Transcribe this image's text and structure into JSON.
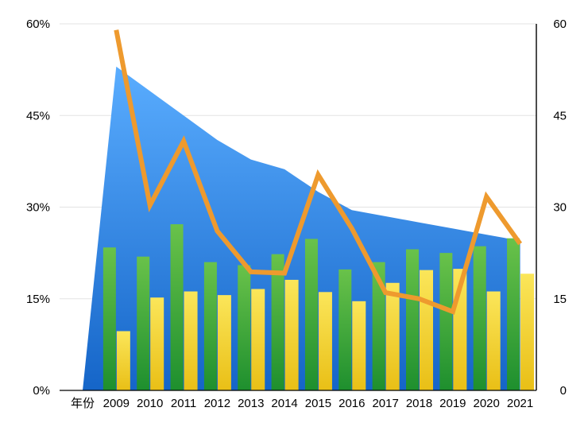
{
  "chart_data": {
    "type": "bar",
    "categories": [
      "年份",
      "2009",
      "2010",
      "2011",
      "2012",
      "2013",
      "2014",
      "2015",
      "2016",
      "2017",
      "2018",
      "2019",
      "2020",
      "2021"
    ],
    "left_axis": {
      "min": 0,
      "max": 0.6,
      "ticks": [
        "0%",
        "15%",
        "30%",
        "45%",
        "60%"
      ]
    },
    "right_axis": {
      "min": 0,
      "max": 60,
      "ticks": [
        "0",
        "15",
        "30",
        "45",
        "60"
      ]
    },
    "series": [
      {
        "name": "area",
        "type": "area",
        "axis": "left",
        "color": "#2f86e3",
        "values": [
          0.0,
          0.53,
          0.49,
          0.45,
          0.41,
          0.378,
          0.362,
          0.325,
          0.295,
          0.285,
          0.275,
          0.265,
          0.255,
          0.245
        ]
      },
      {
        "name": "green bars",
        "type": "bar",
        "axis": "right",
        "color": "#4caf3a",
        "values": [
          null,
          23.4,
          21.9,
          27.2,
          21.0,
          20.5,
          22.3,
          24.8,
          19.8,
          21.0,
          23.1,
          22.5,
          23.6,
          24.9
        ]
      },
      {
        "name": "yellow bars",
        "type": "bar",
        "axis": "right",
        "color": "#f4d52a",
        "values": [
          null,
          9.7,
          15.2,
          16.2,
          15.6,
          16.6,
          18.1,
          16.1,
          14.6,
          17.6,
          19.7,
          19.9,
          16.2,
          19.1
        ]
      },
      {
        "name": "orange line",
        "type": "line",
        "axis": "right",
        "color": "#ee9a2e",
        "values": [
          null,
          59.0,
          30.3,
          40.8,
          26.1,
          19.4,
          19.2,
          35.3,
          26.5,
          16.0,
          15.0,
          12.9,
          31.7,
          24.0
        ]
      }
    ]
  }
}
